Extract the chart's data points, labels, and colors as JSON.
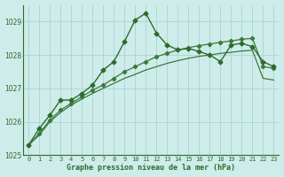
{
  "title": "Graphe pression niveau de la mer (hPa)",
  "background_color": "#ceecea",
  "grid_color": "#aed8d4",
  "line_color_dark": "#2d6b2d",
  "line_color_mid": "#3a7a3a",
  "x_labels": [
    "0",
    "1",
    "2",
    "3",
    "4",
    "5",
    "6",
    "7",
    "8",
    "9",
    "10",
    "11",
    "12",
    "13",
    "14",
    "15",
    "16",
    "17",
    "18",
    "19",
    "20",
    "21",
    "22",
    "23"
  ],
  "ylim": [
    1025.0,
    1029.5
  ],
  "yticks": [
    1025,
    1026,
    1027,
    1028,
    1029
  ],
  "series1": [
    1025.3,
    1025.8,
    1026.2,
    1026.65,
    1026.65,
    1026.85,
    1027.1,
    1027.55,
    1027.8,
    1028.4,
    1029.05,
    1029.25,
    1028.65,
    1028.3,
    1028.15,
    1028.2,
    1028.1,
    1028.0,
    1027.8,
    1028.3,
    1028.35,
    1028.25,
    1027.8,
    1027.65
  ],
  "series2": [
    1025.3,
    1025.65,
    1026.05,
    1026.35,
    1026.55,
    1026.75,
    1026.95,
    1027.1,
    1027.3,
    1027.5,
    1027.65,
    1027.8,
    1027.95,
    1028.05,
    1028.15,
    1028.22,
    1028.28,
    1028.33,
    1028.38,
    1028.42,
    1028.47,
    1028.5,
    1027.65,
    1027.6
  ],
  "series3": [
    1025.3,
    1025.6,
    1026.0,
    1026.28,
    1026.5,
    1026.68,
    1026.85,
    1027.0,
    1027.15,
    1027.3,
    1027.42,
    1027.55,
    1027.65,
    1027.75,
    1027.83,
    1027.9,
    1027.96,
    1028.0,
    1028.05,
    1028.08,
    1028.12,
    1028.14,
    1027.3,
    1027.25
  ]
}
